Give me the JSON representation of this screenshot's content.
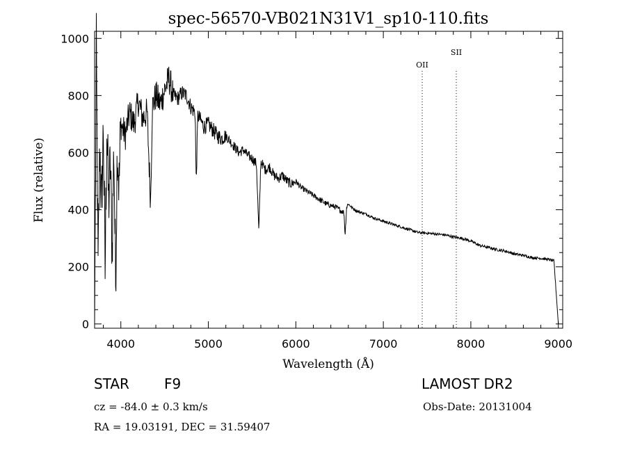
{
  "chart_data": {
    "type": "line",
    "title": "spec-56570-VB021N31V1_sp10-110.fits",
    "xlabel": "Wavelength (Å)",
    "ylabel": "Flux (relative)",
    "xlim": [
      3700,
      9050
    ],
    "ylim": [
      -15,
      1025
    ],
    "x_ticks": [
      4000,
      5000,
      6000,
      7000,
      8000,
      9000
    ],
    "y_ticks": [
      0,
      200,
      400,
      600,
      800,
      1000
    ],
    "grid": false,
    "series": [
      {
        "x": [
          3700,
          3720,
          3740,
          3760,
          3780,
          3800,
          3820,
          3840,
          3860,
          3880,
          3900,
          3920,
          3940,
          3960,
          3980,
          4000,
          4050,
          4100,
          4150,
          4200,
          4250,
          4300,
          4340,
          4360,
          4400,
          4450,
          4500,
          4550,
          4600,
          4650,
          4700,
          4750,
          4800,
          4850,
          4861,
          4880,
          4900,
          4950,
          5000,
          5050,
          5100,
          5150,
          5200,
          5250,
          5300,
          5350,
          5400,
          5450,
          5500,
          5550,
          5577,
          5600,
          5650,
          5700,
          5750,
          5800,
          5850,
          5900,
          5950,
          6000,
          6050,
          6100,
          6150,
          6200,
          6250,
          6300,
          6350,
          6400,
          6450,
          6500,
          6550,
          6563,
          6580,
          6600,
          6650,
          6700,
          6800,
          6900,
          7000,
          7100,
          7200,
          7300,
          7400,
          7500,
          7600,
          7700,
          7800,
          7900,
          8000,
          8100,
          8200,
          8300,
          8400,
          8500,
          8600,
          8700,
          8800,
          8900,
          8950,
          9000
        ],
        "y": [
          0,
          950,
          180,
          620,
          400,
          690,
          180,
          700,
          420,
          560,
          260,
          620,
          150,
          640,
          480,
          700,
          660,
          740,
          700,
          780,
          720,
          740,
          430,
          760,
          800,
          770,
          820,
          860,
          800,
          790,
          810,
          800,
          760,
          740,
          490,
          730,
          720,
          690,
          700,
          680,
          660,
          650,
          660,
          640,
          620,
          600,
          610,
          590,
          580,
          560,
          320,
          570,
          540,
          550,
          520,
          510,
          520,
          500,
          490,
          500,
          480,
          470,
          460,
          450,
          440,
          430,
          420,
          415,
          410,
          400,
          390,
          310,
          410,
          420,
          405,
          395,
          385,
          370,
          360,
          350,
          340,
          330,
          320,
          318,
          315,
          312,
          305,
          300,
          290,
          275,
          268,
          260,
          255,
          245,
          240,
          232,
          230,
          225,
          220,
          0
        ]
      }
    ],
    "annotations": [
      {
        "label": "OII",
        "x": 7444
      },
      {
        "label": "SII",
        "x": 7834
      }
    ]
  },
  "info": {
    "object_class": "STAR",
    "subclass": "F9",
    "survey": "LAMOST DR2",
    "redshift": "cz = -84.0 ± 0.3 km/s",
    "obs_date": "Obs-Date: 20131004",
    "coords": "RA =  19.03191, DEC =  31.59407"
  }
}
